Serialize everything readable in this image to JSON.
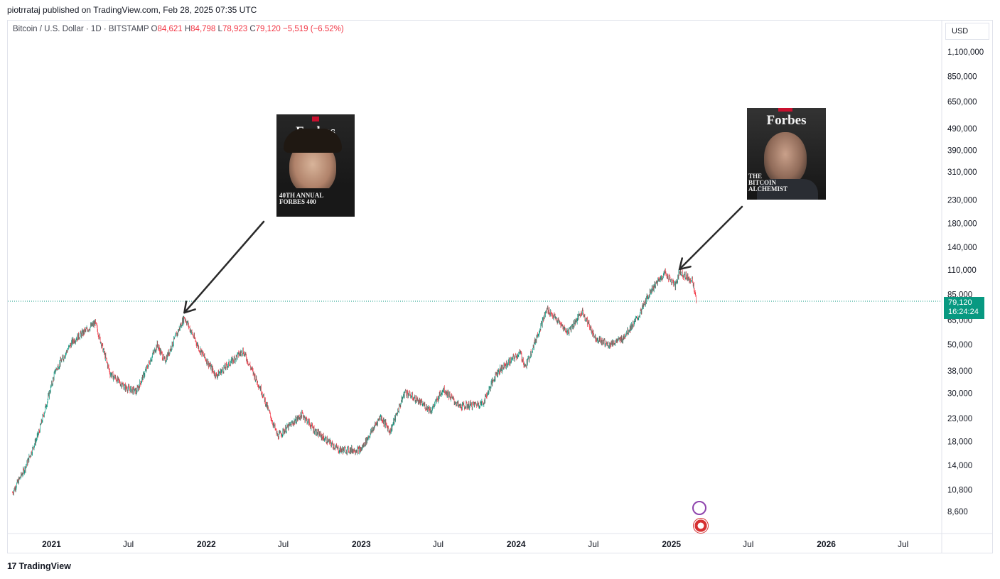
{
  "caption": "piotrrataj published on TradingView.com, Feb 28, 2025 07:35 UTC",
  "legend": {
    "symbol": "Bitcoin / U.S. Dollar · 1D · BITSTAMP",
    "o_key": "O",
    "o_val": "84,621",
    "h_key": "H",
    "h_val": "84,798",
    "l_key": "L",
    "l_val": "78,923",
    "c_key": "C",
    "c_val": "79,120",
    "change": "−5,519 (−6.52%)"
  },
  "currency": "USD",
  "last_price": {
    "value": "79,120",
    "countdown": "16:24:24"
  },
  "covers": [
    {
      "masthead": "Forbes",
      "subtitle": "40TH ANNUAL FORBES 400"
    },
    {
      "masthead": "Forbes",
      "subtitle": "THE BITCOIN ALCHEMIST"
    }
  ],
  "footer": {
    "brand": "TradingView",
    "icon": "tradingview-logo-icon"
  },
  "colors": {
    "up": "#089981",
    "down": "#f23645",
    "price_line": "#089981",
    "arrow": "#2a2a2a"
  },
  "chart_data": {
    "type": "candlestick",
    "symbol": "Bitcoin / U.S. Dollar",
    "interval": "1D",
    "exchange": "BITSTAMP",
    "y_scale": "log",
    "y_ticks": [
      1100000,
      850000,
      650000,
      490000,
      390000,
      310000,
      230000,
      180000,
      140000,
      110000,
      85000,
      65000,
      50000,
      38000,
      30000,
      23000,
      18000,
      14000,
      10800,
      8600
    ],
    "y_tick_labels": [
      "1,100,000",
      "850,000",
      "650,000",
      "490,000",
      "390,000",
      "310,000",
      "230,000",
      "180,000",
      "140,000",
      "110,000",
      "85,000",
      "65,000",
      "50,000",
      "38,000",
      "30,000",
      "23,000",
      "18,000",
      "14,000",
      "10,800",
      "8,600"
    ],
    "x_tick_labels": [
      {
        "date": "2021-01-01",
        "label": "2021"
      },
      {
        "date": "2021-07-01",
        "label": "Jul"
      },
      {
        "date": "2022-01-01",
        "label": "2022"
      },
      {
        "date": "2022-07-01",
        "label": "Jul"
      },
      {
        "date": "2023-01-01",
        "label": "2023"
      },
      {
        "date": "2023-07-01",
        "label": "Jul"
      },
      {
        "date": "2024-01-01",
        "label": "2024"
      },
      {
        "date": "2024-07-01",
        "label": "Jul"
      },
      {
        "date": "2025-01-01",
        "label": "2025"
      },
      {
        "date": "2025-07-01",
        "label": "Jul"
      },
      {
        "date": "2026-01-01",
        "label": "2026"
      },
      {
        "date": "2026-07-01",
        "label": "Jul"
      }
    ],
    "x_range": [
      "2020-09-20",
      "2026-09-30"
    ],
    "last_close": 79120,
    "approx_close_path": [
      {
        "date": "2020-10-01",
        "close": 10500
      },
      {
        "date": "2020-11-01",
        "close": 13800
      },
      {
        "date": "2020-12-01",
        "close": 19500
      },
      {
        "date": "2021-01-10",
        "close": 38000
      },
      {
        "date": "2021-02-20",
        "close": 52000
      },
      {
        "date": "2021-04-14",
        "close": 63000
      },
      {
        "date": "2021-05-19",
        "close": 37000
      },
      {
        "date": "2021-06-22",
        "close": 32000
      },
      {
        "date": "2021-07-20",
        "close": 30500
      },
      {
        "date": "2021-09-07",
        "close": 50000
      },
      {
        "date": "2021-09-25",
        "close": 42000
      },
      {
        "date": "2021-11-10",
        "close": 67000
      },
      {
        "date": "2021-12-15",
        "close": 48000
      },
      {
        "date": "2022-01-24",
        "close": 36000
      },
      {
        "date": "2022-03-28",
        "close": 47000
      },
      {
        "date": "2022-05-10",
        "close": 31000
      },
      {
        "date": "2022-06-18",
        "close": 19000
      },
      {
        "date": "2022-08-15",
        "close": 24000
      },
      {
        "date": "2022-09-15",
        "close": 20000
      },
      {
        "date": "2022-11-09",
        "close": 16500
      },
      {
        "date": "2022-12-31",
        "close": 16500
      },
      {
        "date": "2023-02-15",
        "close": 23500
      },
      {
        "date": "2023-03-10",
        "close": 20000
      },
      {
        "date": "2023-04-14",
        "close": 30500
      },
      {
        "date": "2023-06-15",
        "close": 25000
      },
      {
        "date": "2023-07-13",
        "close": 31500
      },
      {
        "date": "2023-08-20",
        "close": 26000
      },
      {
        "date": "2023-10-15",
        "close": 27000
      },
      {
        "date": "2023-11-15",
        "close": 37000
      },
      {
        "date": "2024-01-10",
        "close": 46000
      },
      {
        "date": "2024-01-23",
        "close": 39500
      },
      {
        "date": "2024-03-14",
        "close": 73000
      },
      {
        "date": "2024-05-01",
        "close": 57000
      },
      {
        "date": "2024-06-05",
        "close": 71000
      },
      {
        "date": "2024-07-05",
        "close": 54000
      },
      {
        "date": "2024-08-05",
        "close": 50000
      },
      {
        "date": "2024-09-06",
        "close": 53000
      },
      {
        "date": "2024-10-15",
        "close": 67000
      },
      {
        "date": "2024-11-12",
        "close": 88000
      },
      {
        "date": "2024-12-17",
        "close": 107000
      },
      {
        "date": "2025-01-10",
        "close": 93000
      },
      {
        "date": "2025-01-20",
        "close": 108000
      },
      {
        "date": "2025-02-20",
        "close": 98000
      },
      {
        "date": "2025-02-28",
        "close": 79120
      }
    ],
    "annotations": [
      {
        "type": "arrow",
        "target_date": "2021-11-10",
        "target_price": 67000,
        "image": "Forbes 400 cover"
      },
      {
        "type": "arrow",
        "target_date": "2025-01-20",
        "target_price": 106000,
        "image": "Forbes Bitcoin Alchemist cover"
      }
    ]
  }
}
